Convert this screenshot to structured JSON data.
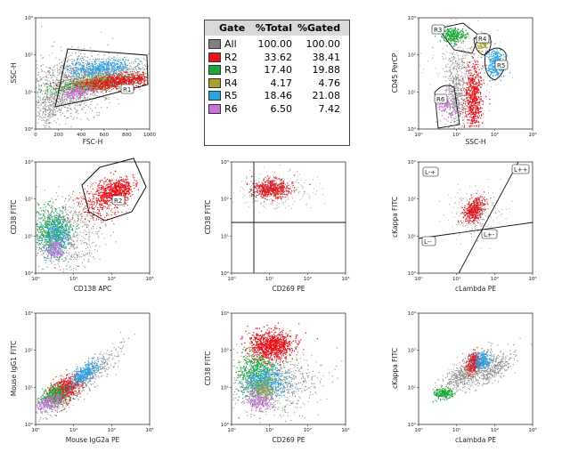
{
  "chart_data": [
    {
      "type": "scatter",
      "id": "p1",
      "xlabel": "FSC-H",
      "ylabel": "SSC-H",
      "x_scale": "linear",
      "x_ticks": [
        "0",
        "200",
        "400",
        "600",
        "800",
        "1000"
      ],
      "y_scale": "log",
      "y_ticks": [
        "10⁰",
        "10¹",
        "10²",
        "10³"
      ],
      "gates": [
        "R1"
      ]
    },
    {
      "type": "table",
      "id": "gate-table",
      "columns": [
        "Gate",
        "%Total",
        "%Gated"
      ],
      "rows": [
        {
          "gate": "All",
          "total": "100.00",
          "gated": "100.00",
          "color": "#7f7f7f"
        },
        {
          "gate": "R2",
          "total": "33.62",
          "gated": "38.41",
          "color": "#e8131b"
        },
        {
          "gate": "R3",
          "total": "17.40",
          "gated": "19.88",
          "color": "#1ca93a"
        },
        {
          "gate": "R4",
          "total": "4.17",
          "gated": "4.76",
          "color": "#a8a22a"
        },
        {
          "gate": "R5",
          "total": "18.46",
          "gated": "21.08",
          "color": "#2aa3e3"
        },
        {
          "gate": "R6",
          "total": "6.50",
          "gated": "7.42",
          "color": "#c774d6"
        }
      ]
    },
    {
      "type": "scatter",
      "id": "p3",
      "xlabel": "SSC-H",
      "ylabel": "CD45 PerCP",
      "x_scale": "log",
      "x_ticks": [
        "10⁰",
        "10¹",
        "10²",
        "10³"
      ],
      "y_scale": "log",
      "y_ticks": [
        "10⁰",
        "10¹",
        "10²",
        "10³"
      ],
      "gates": [
        "R3",
        "R4",
        "R5",
        "R6"
      ]
    },
    {
      "type": "scatter",
      "id": "p4",
      "xlabel": "CD138 APC",
      "ylabel": "CD38 FITC",
      "x_scale": "log",
      "x_ticks": [
        "10⁰",
        "10¹",
        "10²",
        "10³"
      ],
      "y_scale": "log",
      "y_ticks": [
        "10⁰",
        "10¹",
        "10²",
        "10³"
      ],
      "gates": [
        "R2"
      ]
    },
    {
      "type": "scatter",
      "id": "p5",
      "xlabel": "CD269 PE",
      "ylabel": "CD38 FITC",
      "x_scale": "log",
      "x_ticks": [
        "10⁰",
        "10¹",
        "10²",
        "10³"
      ],
      "y_scale": "log",
      "y_ticks": [
        "10⁰",
        "10¹",
        "10²",
        "10³"
      ],
      "gates": []
    },
    {
      "type": "scatter",
      "id": "p6",
      "xlabel": "cLambda PE",
      "ylabel": "cKappa FITC",
      "x_scale": "log",
      "x_ticks": [
        "10⁰",
        "10¹",
        "10²",
        "10³"
      ],
      "y_scale": "log",
      "y_ticks": [
        "10⁰",
        "10¹",
        "10²",
        "10³"
      ],
      "gates": [
        "L-+",
        "L++",
        "L--",
        "L+-"
      ]
    },
    {
      "type": "scatter",
      "id": "p7",
      "xlabel": "Mouse IgG2a PE",
      "ylabel": "Mouse IgG1 FITC",
      "x_scale": "log",
      "x_ticks": [
        "10⁰",
        "10¹",
        "10²",
        "10³"
      ],
      "y_scale": "log",
      "y_ticks": [
        "10⁰",
        "10¹",
        "10²",
        "10³"
      ],
      "gates": []
    },
    {
      "type": "scatter",
      "id": "p8",
      "xlabel": "CD269 PE",
      "ylabel": "CD38 FITC",
      "x_scale": "log",
      "x_ticks": [
        "10⁰",
        "10¹",
        "10²",
        "10³"
      ],
      "y_scale": "log",
      "y_ticks": [
        "10⁰",
        "10¹",
        "10²",
        "10³"
      ],
      "gates": []
    },
    {
      "type": "scatter",
      "id": "p9",
      "xlabel": "cLambda PE",
      "ylabel": "cKappa FITC",
      "x_scale": "log",
      "x_ticks": [
        "10⁰",
        "10¹",
        "10²",
        "10³"
      ],
      "y_scale": "log",
      "y_ticks": [
        "10⁰",
        "10¹",
        "10²",
        "10³"
      ],
      "gates": []
    }
  ],
  "colors": {
    "all": "#7f7f7f",
    "r2": "#e8131b",
    "r3": "#1ca93a",
    "r4": "#a8a22a",
    "r5": "#2aa3e3",
    "r6": "#c774d6"
  }
}
